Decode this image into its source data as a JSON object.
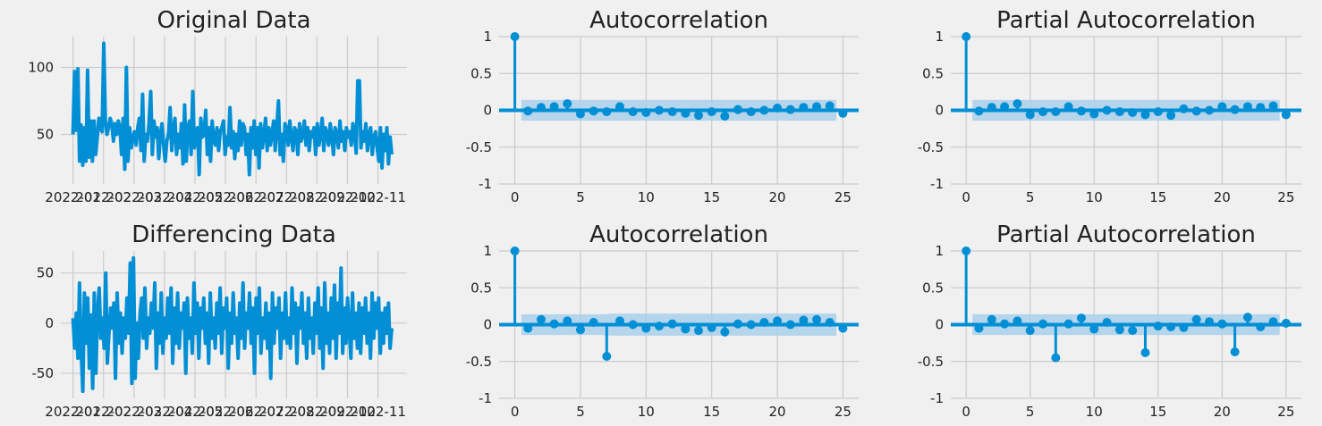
{
  "colors": {
    "background": "#f0f0f0",
    "plot_background": "#f0f0f0",
    "grid": "#cbcbcb",
    "line": "#008fd5",
    "confidence_band": "#a9d0ea"
  },
  "chart_data": [
    {
      "id": "original",
      "type": "line",
      "title": "Original Data",
      "x_tick_labels": [
        "2022-01",
        "2022-02",
        "2022-03",
        "2022-04",
        "2022-05",
        "2022-06",
        "2022-07",
        "2022-08",
        "2022-09",
        "2022-10",
        "2022-11"
      ],
      "x_range": [
        -0.4,
        10.95
      ],
      "ylim": [
        13,
        123
      ],
      "y_ticks": [
        50,
        100
      ],
      "grid": true,
      "series": [
        {
          "values": [
            50,
            97,
            53,
            99,
            30,
            57,
            27,
            55,
            30,
            98,
            33,
            60,
            30,
            60,
            35,
            48,
            62,
            55,
            52,
            118,
            60,
            50,
            55,
            62,
            58,
            45,
            58,
            50,
            60,
            55,
            35,
            62,
            24,
            100,
            30,
            55,
            40,
            48,
            52,
            42,
            55,
            62,
            38,
            80,
            30,
            50,
            45,
            58,
            82,
            35,
            60,
            48,
            55,
            32,
            50,
            58,
            42,
            30,
            45,
            50,
            70,
            38,
            52,
            62,
            35,
            50,
            40,
            58,
            28,
            72,
            30,
            55,
            60,
            35,
            82,
            40,
            52,
            55,
            20,
            62,
            48,
            50,
            68,
            35,
            55,
            30,
            60,
            45,
            42,
            55,
            38,
            52,
            55,
            60,
            35,
            48,
            42,
            70,
            40,
            52,
            32,
            50,
            38,
            60,
            42,
            58,
            55,
            35,
            50,
            20,
            55,
            40,
            60,
            35,
            55,
            25,
            58,
            40,
            50,
            62,
            38,
            55,
            42,
            50,
            60,
            38,
            55,
            75,
            35,
            50,
            30,
            58,
            55,
            42,
            60,
            48,
            38,
            55,
            52,
            35,
            58,
            45,
            50,
            60,
            42,
            55,
            38,
            52,
            48,
            55,
            35,
            58,
            42,
            50,
            62,
            38,
            55,
            50,
            42,
            58,
            48,
            35,
            55,
            50,
            40,
            60,
            45,
            52,
            38,
            55,
            48,
            52,
            42,
            58,
            50,
            36,
            90,
            90,
            40,
            52,
            45,
            58,
            38,
            50,
            55,
            35,
            48,
            52,
            40,
            30,
            55,
            25,
            50,
            38,
            55,
            28,
            48,
            35
          ]
        }
      ]
    },
    {
      "id": "acf-original",
      "type": "stem",
      "title": "Autocorrelation",
      "lags": [
        0,
        1,
        2,
        3,
        4,
        5,
        6,
        7,
        8,
        9,
        10,
        11,
        12,
        13,
        14,
        15,
        16,
        17,
        18,
        19,
        20,
        21,
        22,
        23,
        24,
        25
      ],
      "values": [
        1.0,
        -0.01,
        0.04,
        0.05,
        0.09,
        -0.05,
        -0.01,
        -0.02,
        0.05,
        -0.02,
        -0.03,
        0.0,
        -0.02,
        -0.04,
        -0.07,
        -0.02,
        -0.08,
        0.01,
        -0.02,
        0.0,
        0.03,
        0.01,
        0.04,
        0.05,
        0.06,
        -0.04
      ],
      "confidence": [
        0.14,
        0.14,
        0.14,
        0.14,
        0.14,
        0.14,
        0.14,
        0.14,
        0.14,
        0.14,
        0.14,
        0.14,
        0.14,
        0.14,
        0.14,
        0.14,
        0.14,
        0.14,
        0.14,
        0.14,
        0.14,
        0.14,
        0.14,
        0.14,
        0.14
      ],
      "xlim": [
        -1.2,
        26.2
      ],
      "ylim": [
        -1.0,
        1.0
      ],
      "x_ticks": [
        0,
        5,
        10,
        15,
        20,
        25
      ],
      "y_ticks": [
        1.0,
        0.5,
        0.0,
        -0.5,
        -1.0
      ],
      "grid": true
    },
    {
      "id": "pacf-original",
      "type": "stem",
      "title": "Partial Autocorrelation",
      "lags": [
        0,
        1,
        2,
        3,
        4,
        5,
        6,
        7,
        8,
        9,
        10,
        11,
        12,
        13,
        14,
        15,
        16,
        17,
        18,
        19,
        20,
        21,
        22,
        23,
        24,
        25
      ],
      "values": [
        1.0,
        -0.01,
        0.04,
        0.05,
        0.09,
        -0.06,
        -0.02,
        -0.02,
        0.05,
        -0.01,
        -0.05,
        0.0,
        -0.02,
        -0.03,
        -0.06,
        -0.02,
        -0.07,
        0.02,
        -0.01,
        0.0,
        0.05,
        0.01,
        0.05,
        0.04,
        0.06,
        -0.06
      ],
      "confidence": [
        0.14,
        0.14,
        0.14,
        0.14,
        0.14,
        0.14,
        0.14,
        0.14,
        0.14,
        0.14,
        0.14,
        0.14,
        0.14,
        0.14,
        0.14,
        0.14,
        0.14,
        0.14,
        0.14,
        0.14,
        0.14,
        0.14,
        0.14,
        0.14,
        0.14
      ],
      "xlim": [
        -1.2,
        26.2
      ],
      "ylim": [
        -1.0,
        1.0
      ],
      "x_ticks": [
        0,
        5,
        10,
        15,
        20,
        25
      ],
      "y_ticks": [
        1.0,
        0.5,
        0.0,
        -0.5,
        -1.0
      ],
      "grid": true
    },
    {
      "id": "differencing",
      "type": "line",
      "title": "Differencing Data",
      "x_tick_labels": [
        "2022-01",
        "2022-02",
        "2022-03",
        "2022-04",
        "2022-05",
        "2022-06",
        "2022-07",
        "2022-08",
        "2022-09",
        "2022-10",
        "2022-11"
      ],
      "x_range": [
        -0.4,
        10.95
      ],
      "ylim": [
        -75,
        72
      ],
      "y_ticks": [
        -50,
        0,
        50
      ],
      "grid": true,
      "series": [
        {
          "values": [
            5,
            -25,
            10,
            -35,
            40,
            -30,
            -68,
            30,
            -20,
            25,
            -45,
            8,
            -65,
            30,
            -50,
            10,
            35,
            -15,
            5,
            -25,
            50,
            -40,
            -10,
            15,
            -5,
            20,
            -55,
            30,
            -20,
            10,
            -30,
            5,
            -15,
            25,
            -10,
            60,
            -60,
            65,
            -55,
            0,
            -35,
            10,
            25,
            -15,
            35,
            -25,
            5,
            -10,
            20,
            -5,
            40,
            -45,
            10,
            -20,
            30,
            -30,
            5,
            -15,
            25,
            -10,
            35,
            -40,
            15,
            -20,
            30,
            -25,
            10,
            -5,
            20,
            -50,
            25,
            -15,
            5,
            -30,
            40,
            -10,
            20,
            -35,
            15,
            -5,
            25,
            -20,
            10,
            -40,
            30,
            -15,
            5,
            -25,
            20,
            -10,
            35,
            -30,
            15,
            -5,
            25,
            -45,
            10,
            -20,
            30,
            -10,
            5,
            -35,
            20,
            -15,
            40,
            -25,
            10,
            -5,
            30,
            -20,
            15,
            -50,
            25,
            -10,
            35,
            -30,
            5,
            -15,
            20,
            -25,
            10,
            -55,
            30,
            -20,
            15,
            -5,
            25,
            -35,
            10,
            -15,
            30,
            -20,
            5,
            -25,
            35,
            -10,
            20,
            -40,
            15,
            -5,
            30,
            -20,
            10,
            -35,
            25,
            -15,
            5,
            -30,
            20,
            -10,
            35,
            -25,
            15,
            -45,
            40,
            -20,
            10,
            -30,
            25,
            -15,
            38,
            -35,
            20,
            -10,
            55,
            -30,
            15,
            -20,
            25,
            -5,
            -35,
            30,
            -15,
            10,
            -25,
            20,
            -30,
            15,
            -10,
            25,
            -20,
            10,
            -35,
            30,
            -15,
            20,
            -5,
            25,
            -30,
            10,
            -20,
            15,
            -10,
            20,
            -25,
            -5
          ]
        }
      ]
    },
    {
      "id": "acf-differencing",
      "type": "stem",
      "title": "Autocorrelation",
      "lags": [
        0,
        1,
        2,
        3,
        4,
        5,
        6,
        7,
        8,
        9,
        10,
        11,
        12,
        13,
        14,
        15,
        16,
        17,
        18,
        19,
        20,
        21,
        22,
        23,
        24,
        25
      ],
      "values": [
        1.0,
        -0.05,
        0.07,
        0.01,
        0.05,
        -0.07,
        0.03,
        -0.43,
        0.05,
        0.0,
        -0.05,
        -0.02,
        0.01,
        -0.06,
        -0.08,
        -0.04,
        -0.1,
        0.01,
        0.0,
        0.03,
        0.05,
        0.0,
        0.06,
        0.07,
        0.03,
        -0.05
      ],
      "confidence": [
        0.14,
        0.14,
        0.14,
        0.14,
        0.14,
        0.14,
        0.14,
        0.15,
        0.15,
        0.15,
        0.15,
        0.15,
        0.15,
        0.15,
        0.15,
        0.15,
        0.15,
        0.15,
        0.15,
        0.15,
        0.15,
        0.15,
        0.15,
        0.15,
        0.15
      ],
      "xlim": [
        -1.2,
        26.2
      ],
      "ylim": [
        -1.0,
        1.0
      ],
      "x_ticks": [
        0,
        5,
        10,
        15,
        20,
        25
      ],
      "y_ticks": [
        1.0,
        0.5,
        0.0,
        -0.5,
        -1.0
      ],
      "grid": true
    },
    {
      "id": "pacf-differencing",
      "type": "stem",
      "title": "Partial Autocorrelation",
      "lags": [
        0,
        1,
        2,
        3,
        4,
        5,
        6,
        7,
        8,
        9,
        10,
        11,
        12,
        13,
        14,
        15,
        16,
        17,
        18,
        19,
        20,
        21,
        22,
        23,
        24,
        25
      ],
      "values": [
        1.0,
        -0.05,
        0.07,
        0.01,
        0.05,
        -0.08,
        0.01,
        -0.45,
        0.01,
        0.09,
        -0.06,
        0.03,
        -0.07,
        -0.08,
        -0.38,
        -0.02,
        -0.03,
        -0.04,
        0.07,
        0.04,
        0.01,
        -0.37,
        0.1,
        -0.03,
        0.04,
        0.02
      ],
      "confidence": [
        0.14,
        0.14,
        0.14,
        0.14,
        0.14,
        0.14,
        0.14,
        0.14,
        0.14,
        0.14,
        0.14,
        0.14,
        0.14,
        0.14,
        0.14,
        0.14,
        0.14,
        0.14,
        0.14,
        0.14,
        0.14,
        0.14,
        0.14,
        0.14,
        0.14
      ],
      "xlim": [
        -1.2,
        26.2
      ],
      "ylim": [
        -1.0,
        1.0
      ],
      "x_ticks": [
        0,
        5,
        10,
        15,
        20,
        25
      ],
      "y_ticks": [
        1.0,
        0.5,
        0.0,
        -0.5,
        -1.0
      ],
      "grid": true
    }
  ]
}
